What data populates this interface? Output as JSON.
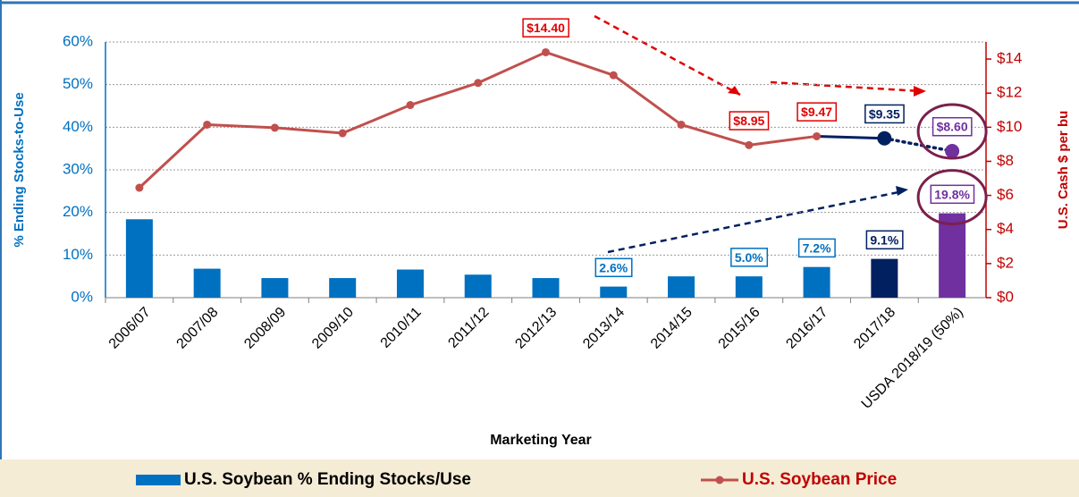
{
  "chart_data": {
    "type": "bar_line",
    "categories": [
      "2006/07",
      "2007/08",
      "2008/09",
      "2009/10",
      "2010/11",
      "2011/12",
      "2012/13",
      "2013/14",
      "2014/15",
      "2015/16",
      "2016/17",
      "2017/18",
      "USDA 2018/19 (50%)"
    ],
    "x_label": "Marketing Year",
    "y_label": "% Ending Stocks-to-Use",
    "y2_label": "U.S. Cash $ per bu",
    "ylim": [
      0,
      60
    ],
    "yticks": [
      {
        "value": 0,
        "label": "0%"
      },
      {
        "value": 10,
        "label": "10%"
      },
      {
        "value": 20,
        "label": "20%"
      },
      {
        "value": 30,
        "label": "30%"
      },
      {
        "value": 40,
        "label": "40%"
      },
      {
        "value": 50,
        "label": "50%"
      },
      {
        "value": 60,
        "label": "60%"
      }
    ],
    "y2lim": [
      0,
      15
    ],
    "y2ticks": [
      {
        "value": 0,
        "label": "$0"
      },
      {
        "value": 2,
        "label": "$2"
      },
      {
        "value": 4,
        "label": "$4"
      },
      {
        "value": 6,
        "label": "$6"
      },
      {
        "value": 8,
        "label": "$8"
      },
      {
        "value": 10,
        "label": "$10"
      },
      {
        "value": 12,
        "label": "$12"
      },
      {
        "value": 14,
        "label": "$14"
      }
    ],
    "grid": true,
    "series": [
      {
        "name": "U.S. Soybean % Ending Stocks/Use",
        "type": "bar",
        "color": "#0070c0",
        "colors": [
          "#0070c0",
          "#0070c0",
          "#0070c0",
          "#0070c0",
          "#0070c0",
          "#0070c0",
          "#0070c0",
          "#0070c0",
          "#0070c0",
          "#0070c0",
          "#0070c0",
          "#002060",
          "#7030a0"
        ],
        "values": [
          18.4,
          6.8,
          4.6,
          4.6,
          6.6,
          5.4,
          4.6,
          2.6,
          5.0,
          5.0,
          7.2,
          9.1,
          19.8
        ],
        "value_labels": [
          null,
          null,
          null,
          null,
          null,
          null,
          null,
          "2.6%",
          null,
          "5.0%",
          "7.2%",
          "9.1%",
          "19.8%"
        ]
      },
      {
        "name": "U.S. Soybean Price",
        "type": "line",
        "axis": "y2",
        "color": "#c0504d",
        "segment_colors": [
          "#c0504d",
          "#c0504d",
          "#c0504d",
          "#c0504d",
          "#c0504d",
          "#c0504d",
          "#c0504d",
          "#c0504d",
          "#c0504d",
          "#c0504d",
          "#002060",
          "#002060"
        ],
        "segment_dashed": [
          false,
          false,
          false,
          false,
          false,
          false,
          false,
          false,
          false,
          false,
          false,
          true
        ],
        "marker_colors": [
          "#c0504d",
          "#c0504d",
          "#c0504d",
          "#c0504d",
          "#c0504d",
          "#c0504d",
          "#c0504d",
          "#c0504d",
          "#c0504d",
          "#c0504d",
          "#c0504d",
          "#002060",
          "#7030a0"
        ],
        "values": [
          6.45,
          10.15,
          9.97,
          9.65,
          11.3,
          12.6,
          14.4,
          13.05,
          10.15,
          8.95,
          9.47,
          9.35,
          8.6
        ],
        "value_labels": [
          null,
          null,
          null,
          null,
          null,
          null,
          "$14.40",
          null,
          null,
          "$8.95",
          "$9.47",
          "$9.35",
          "$8.60"
        ]
      }
    ]
  }
}
